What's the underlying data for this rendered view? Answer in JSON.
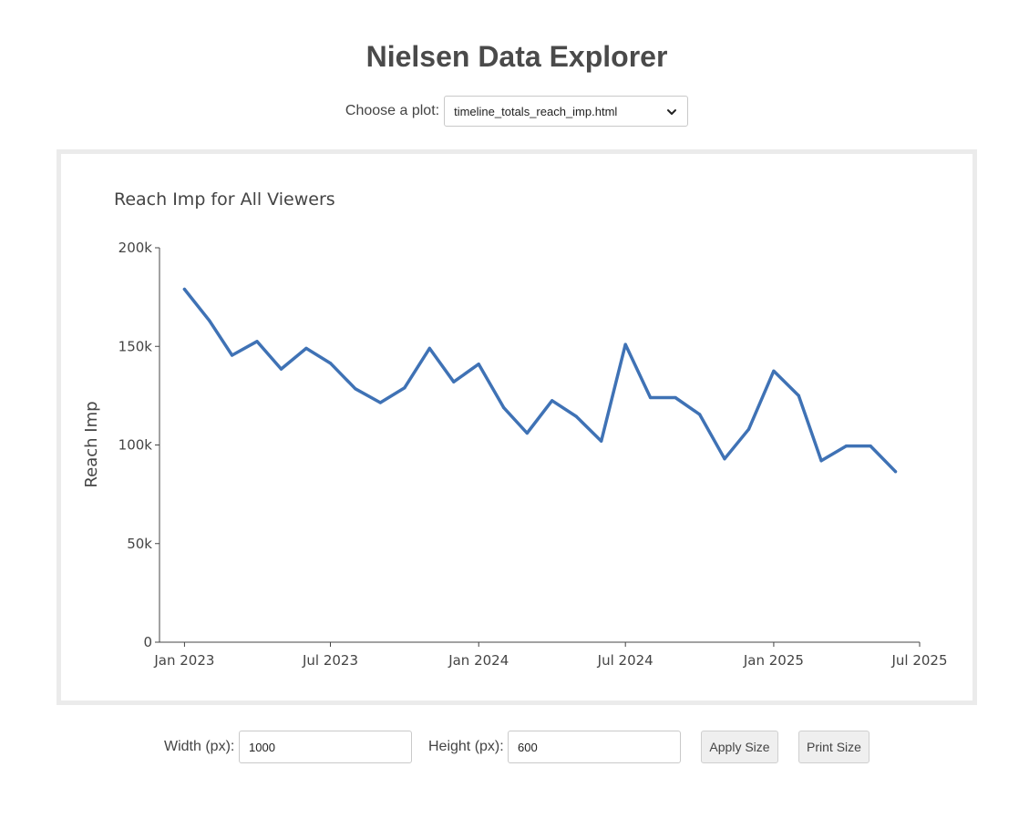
{
  "app": {
    "title": "Nielsen Data Explorer"
  },
  "picker": {
    "label": "Choose a plot:",
    "selected": "timeline_totals_reach_imp.html"
  },
  "size_controls": {
    "width_label": "Width (px):",
    "width_value": "1000",
    "height_label": "Height (px):",
    "height_value": "600",
    "apply_label": "Apply Size",
    "print_label": "Print Size"
  },
  "colors": {
    "line": "#3f72b5",
    "frame_border": "#ebebeb",
    "button_bg": "#efefef"
  },
  "icons": {
    "dropdown": "chevron-down-icon"
  },
  "chart_data": {
    "type": "line",
    "title": "Reach Imp for All Viewers",
    "xlabel": "",
    "ylabel": "Reach Imp",
    "x_ticks": [
      "Jan 2023",
      "Jul 2023",
      "Jan 2024",
      "Jul 2024",
      "Jan 2025",
      "Jul 2025"
    ],
    "y_ticks": [
      "0",
      "50k",
      "100k",
      "150k",
      "200k"
    ],
    "xlim": [
      "2022-12-01",
      "2025-07-01"
    ],
    "ylim": [
      0,
      200000
    ],
    "grid": false,
    "legend": "none",
    "series": [
      {
        "x": [
          "2023-01-01",
          "2023-02-01",
          "2023-03-01",
          "2023-04-01",
          "2023-05-01",
          "2023-06-01",
          "2023-07-01",
          "2023-08-01",
          "2023-09-01",
          "2023-10-01",
          "2023-11-01",
          "2023-12-01",
          "2024-01-01",
          "2024-02-01",
          "2024-03-01",
          "2024-04-01",
          "2024-05-01",
          "2024-06-01",
          "2024-07-01",
          "2024-08-01",
          "2024-09-01",
          "2024-10-01",
          "2024-11-01",
          "2024-12-01",
          "2025-01-01",
          "2025-02-01",
          "2025-03-01",
          "2025-04-01",
          "2025-05-01",
          "2025-06-01"
        ],
        "y": [
          179000,
          163000,
          145500,
          152500,
          138500,
          149000,
          141500,
          128500,
          121500,
          129000,
          149000,
          132000,
          141000,
          119000,
          106000,
          122500,
          114500,
          102000,
          151000,
          124000,
          124000,
          115500,
          93000,
          108000,
          137500,
          125000,
          92000,
          99500,
          99500,
          86500
        ]
      }
    ]
  }
}
